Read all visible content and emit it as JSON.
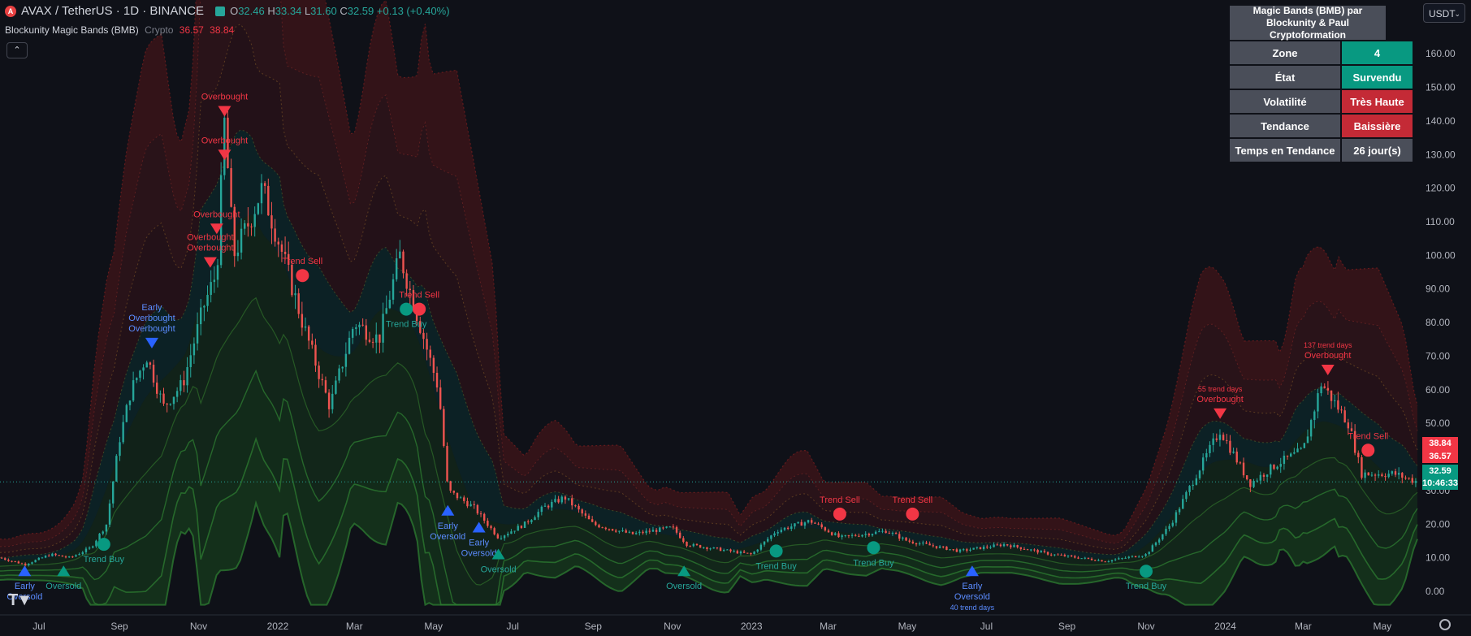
{
  "header": {
    "symbol": "AVAX / TetherUS · 1D · BINANCE",
    "open_key": "O",
    "open": "32.46",
    "high_key": "H",
    "high": "33.34",
    "low_key": "L",
    "low": "31.60",
    "close_key": "C",
    "close": "32.59",
    "change": "+0.13 (+0.40%)",
    "logo_letter": "A"
  },
  "indicator": {
    "name": "Blockunity Magic Bands (BMB)",
    "market": "Crypto",
    "value1": "36.57",
    "value2": "38.84"
  },
  "currency_button": "USDT",
  "status_table": {
    "title": "Magic Bands (BMB) par Blockunity & Paul Cryptoformation",
    "rows": [
      {
        "label": "Zone",
        "value": "4",
        "color": "#089981"
      },
      {
        "label": "État",
        "value": "Survendu",
        "color": "#089981"
      },
      {
        "label": "Volatilité",
        "value": "Très Haute",
        "color": "#c42a36"
      },
      {
        "label": "Tendance",
        "value": "Baissière",
        "color": "#c42a36"
      },
      {
        "label": "Temps en Tendance",
        "value": "26 jour(s)",
        "color": "#4a4e59"
      }
    ]
  },
  "price_labels": {
    "upper": "38.84",
    "mid": "36.57",
    "last": "32.59",
    "countdown": "10:46:33"
  },
  "colors": {
    "up": "#26a69a",
    "down": "#ef5350",
    "bull_signal": "#089981",
    "bear_signal": "#f23645",
    "early_signal": "#2962ff",
    "background": "#0f1118"
  },
  "icons": {
    "tradingview_logo": "tradingview-logo-icon",
    "settings": "gear-icon",
    "collapse": "chevron-up-icon",
    "avax": "avax-logo-icon"
  },
  "chart_data": {
    "type": "line",
    "title": "AVAX / TetherUS · 1D · BINANCE",
    "series_kind": "candlestick price with dynamic volatility bands",
    "y_ticks": [
      "0.00",
      "10.00",
      "20.00",
      "30.00",
      "40.00",
      "50.00",
      "60.00",
      "70.00",
      "80.00",
      "90.00",
      "100.00",
      "110.00",
      "120.00",
      "130.00",
      "140.00",
      "150.00",
      "160.00"
    ],
    "y_tick_values": [
      0,
      10,
      20,
      30,
      40,
      50,
      60,
      70,
      80,
      90,
      100,
      110,
      120,
      130,
      140,
      150,
      160
    ],
    "ylim": [
      -7,
      176
    ],
    "x_ticks": [
      "Jul",
      "Sep",
      "Nov",
      "2022",
      "Mar",
      "May",
      "Jul",
      "Sep",
      "Nov",
      "2023",
      "Mar",
      "May",
      "Jul",
      "Sep",
      "Nov",
      "2024",
      "Mar",
      "May"
    ],
    "x_tick_dates": [
      "2021-07-01",
      "2021-09-01",
      "2021-11-01",
      "2022-01-01",
      "2022-03-01",
      "2022-05-01",
      "2022-07-01",
      "2022-09-01",
      "2022-11-01",
      "2023-01-01",
      "2023-03-01",
      "2023-05-01",
      "2023-07-01",
      "2023-09-01",
      "2023-11-01",
      "2024-01-01",
      "2024-03-01",
      "2024-05-01"
    ],
    "xlim": [
      "2021-06-01",
      "2024-05-28"
    ],
    "price_path": [
      {
        "date": "2021-06-01",
        "value": 10
      },
      {
        "date": "2021-06-20",
        "value": 8
      },
      {
        "date": "2021-07-10",
        "value": 11
      },
      {
        "date": "2021-07-25",
        "value": 10
      },
      {
        "date": "2021-08-10",
        "value": 13
      },
      {
        "date": "2021-08-22",
        "value": 20
      },
      {
        "date": "2021-09-01",
        "value": 45
      },
      {
        "date": "2021-09-10",
        "value": 60
      },
      {
        "date": "2021-09-22",
        "value": 70
      },
      {
        "date": "2021-10-05",
        "value": 55
      },
      {
        "date": "2021-10-20",
        "value": 62
      },
      {
        "date": "2021-11-05",
        "value": 85
      },
      {
        "date": "2021-11-15",
        "value": 95
      },
      {
        "date": "2021-11-21",
        "value": 140
      },
      {
        "date": "2021-11-28",
        "value": 100
      },
      {
        "date": "2021-12-10",
        "value": 110
      },
      {
        "date": "2021-12-20",
        "value": 120
      },
      {
        "date": "2022-01-05",
        "value": 100
      },
      {
        "date": "2022-01-20",
        "value": 80
      },
      {
        "date": "2022-02-10",
        "value": 55
      },
      {
        "date": "2022-03-01",
        "value": 80
      },
      {
        "date": "2022-03-20",
        "value": 75
      },
      {
        "date": "2022-04-05",
        "value": 100
      },
      {
        "date": "2022-04-20",
        "value": 80
      },
      {
        "date": "2022-05-05",
        "value": 60
      },
      {
        "date": "2022-05-12",
        "value": 30
      },
      {
        "date": "2022-06-01",
        "value": 25
      },
      {
        "date": "2022-06-20",
        "value": 16
      },
      {
        "date": "2022-07-10",
        "value": 20
      },
      {
        "date": "2022-07-25",
        "value": 25
      },
      {
        "date": "2022-08-10",
        "value": 28
      },
      {
        "date": "2022-09-01",
        "value": 20
      },
      {
        "date": "2022-10-01",
        "value": 17
      },
      {
        "date": "2022-11-01",
        "value": 19
      },
      {
        "date": "2022-11-12",
        "value": 14
      },
      {
        "date": "2022-12-15",
        "value": 12
      },
      {
        "date": "2023-01-01",
        "value": 11
      },
      {
        "date": "2023-01-20",
        "value": 18
      },
      {
        "date": "2023-02-15",
        "value": 21
      },
      {
        "date": "2023-03-10",
        "value": 16
      },
      {
        "date": "2023-04-15",
        "value": 18
      },
      {
        "date": "2023-05-01",
        "value": 15
      },
      {
        "date": "2023-06-10",
        "value": 12
      },
      {
        "date": "2023-07-15",
        "value": 14
      },
      {
        "date": "2023-08-20",
        "value": 11
      },
      {
        "date": "2023-10-01",
        "value": 9
      },
      {
        "date": "2023-11-01",
        "value": 11
      },
      {
        "date": "2023-11-20",
        "value": 20
      },
      {
        "date": "2023-12-10",
        "value": 35
      },
      {
        "date": "2023-12-28",
        "value": 48
      },
      {
        "date": "2024-01-20",
        "value": 32
      },
      {
        "date": "2024-02-10",
        "value": 38
      },
      {
        "date": "2024-03-01",
        "value": 42
      },
      {
        "date": "2024-03-15",
        "value": 62
      },
      {
        "date": "2024-04-05",
        "value": 50
      },
      {
        "date": "2024-04-15",
        "value": 35
      },
      {
        "date": "2024-05-10",
        "value": 35
      },
      {
        "date": "2024-05-28",
        "value": 32.59
      }
    ],
    "price_lines": [
      38.84,
      36.57,
      32.59
    ],
    "annotations": [
      {
        "date": "2021-06-20",
        "value": 6,
        "shape": "up",
        "kind": "early",
        "label": "Early\nOversold"
      },
      {
        "date": "2021-07-20",
        "value": 6,
        "shape": "up",
        "kind": "bull",
        "label": "Oversold"
      },
      {
        "date": "2021-08-20",
        "value": 14,
        "shape": "circle",
        "kind": "bull",
        "label": "Trend Buy"
      },
      {
        "date": "2021-09-26",
        "value": 74,
        "shape": "down",
        "kind": "early",
        "label": "Early\nOverbought\nOverbought"
      },
      {
        "date": "2021-11-10",
        "value": 98,
        "shape": "down",
        "kind": "bear",
        "label": "Overbought\nOverbought"
      },
      {
        "date": "2021-11-15",
        "value": 108,
        "shape": "down",
        "kind": "bear",
        "label": "Overbought"
      },
      {
        "date": "2021-11-21",
        "value": 130,
        "shape": "down",
        "kind": "bear",
        "label": "Overbought"
      },
      {
        "date": "2021-11-21",
        "value": 143,
        "shape": "down",
        "kind": "bear",
        "label": "Overbought"
      },
      {
        "date": "2022-01-20",
        "value": 94,
        "shape": "circle",
        "kind": "bear",
        "label": "Trend Sell"
      },
      {
        "date": "2022-04-10",
        "value": 84,
        "shape": "circle",
        "kind": "bull",
        "label": "Trend Buy"
      },
      {
        "date": "2022-04-20",
        "value": 84,
        "shape": "circle",
        "kind": "bear",
        "label": "Trend Sell"
      },
      {
        "date": "2022-05-12",
        "value": 24,
        "shape": "up",
        "kind": "early",
        "label": "Early\nOversold"
      },
      {
        "date": "2022-06-05",
        "value": 19,
        "shape": "up",
        "kind": "early",
        "label": "Early\nOversold"
      },
      {
        "date": "2022-06-20",
        "value": 11,
        "shape": "up",
        "kind": "bull",
        "label": "Oversold"
      },
      {
        "date": "2022-11-10",
        "value": 6,
        "shape": "up",
        "kind": "bull",
        "label": "Oversold"
      },
      {
        "date": "2023-01-20",
        "value": 12,
        "shape": "circle",
        "kind": "bull",
        "label": "Trend Buy"
      },
      {
        "date": "2023-03-10",
        "value": 23,
        "shape": "circle",
        "kind": "bear",
        "label": "Trend Sell"
      },
      {
        "date": "2023-04-05",
        "value": 13,
        "shape": "circle",
        "kind": "bull",
        "label": "Trend Buy"
      },
      {
        "date": "2023-05-05",
        "value": 23,
        "shape": "circle",
        "kind": "bear",
        "label": "Trend Sell"
      },
      {
        "date": "2023-06-20",
        "value": 6,
        "shape": "up",
        "kind": "early",
        "label": "Early\nOversold\n40 trend days"
      },
      {
        "date": "2023-11-01",
        "value": 6,
        "shape": "circle",
        "kind": "bull",
        "label": "Trend Buy"
      },
      {
        "date": "2023-12-28",
        "value": 53,
        "shape": "down",
        "kind": "bear",
        "label": "55 trend days\nOverbought"
      },
      {
        "date": "2024-03-20",
        "value": 66,
        "shape": "down",
        "kind": "bear",
        "label": "137 trend days\nOverbought"
      },
      {
        "date": "2024-04-20",
        "value": 42,
        "shape": "circle",
        "kind": "bear",
        "label": "Trend Sell"
      }
    ]
  }
}
